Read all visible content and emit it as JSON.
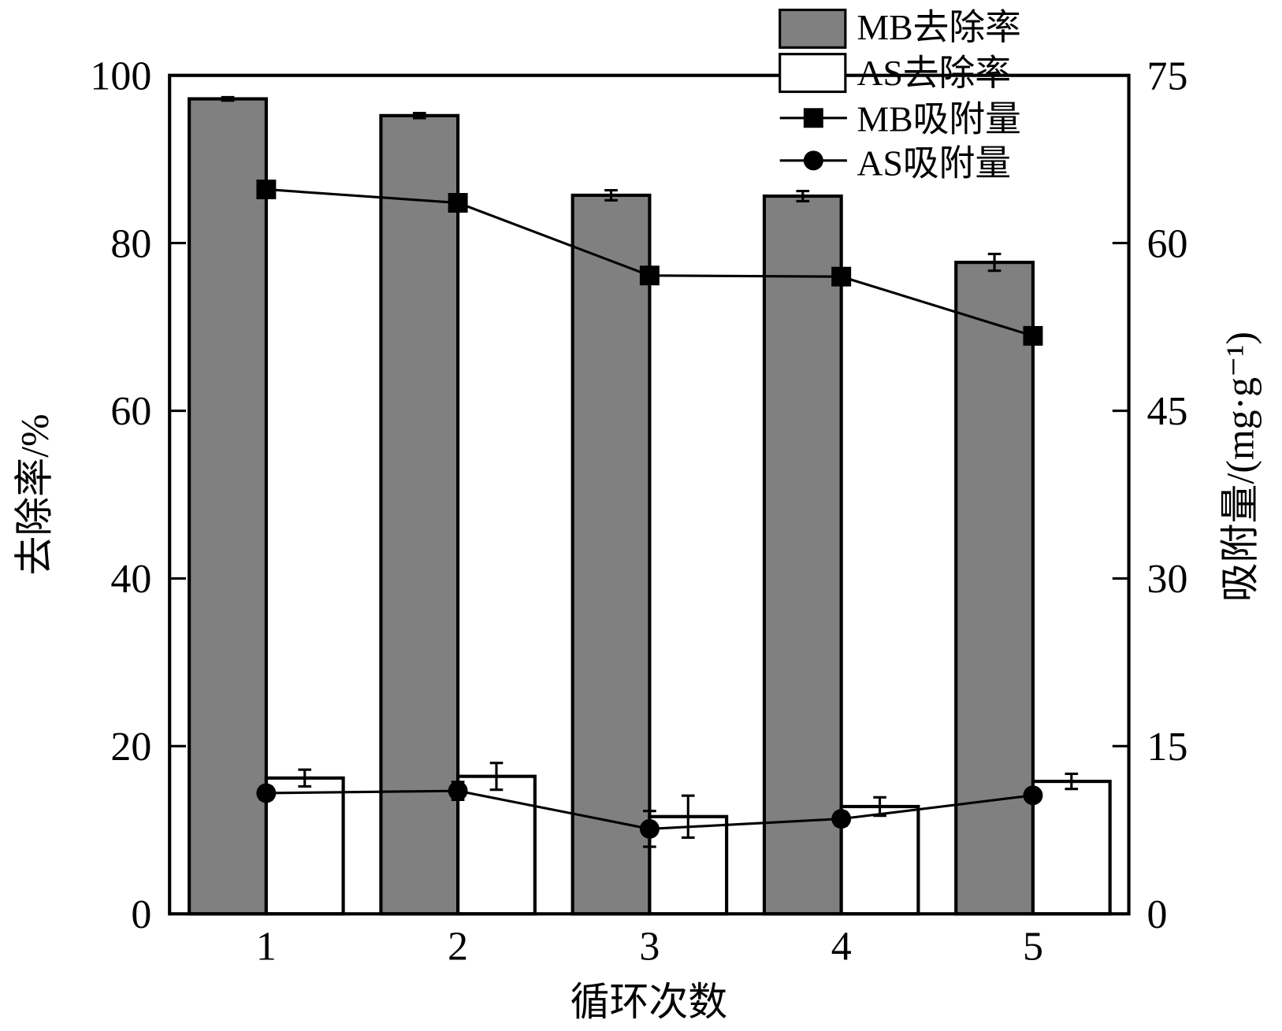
{
  "chart_data": {
    "type": "bar",
    "title": "",
    "xlabel": "循环次数",
    "ylabel": "去除率/%",
    "y2label": "吸附量/(mg·g⁻¹)",
    "categories": [
      "1",
      "2",
      "3",
      "4",
      "5"
    ],
    "ylim": [
      0,
      100
    ],
    "y2lim": [
      0,
      75
    ],
    "yticks": [
      "0",
      "20",
      "40",
      "60",
      "80",
      "100"
    ],
    "y2ticks": [
      "0",
      "15",
      "30",
      "45",
      "60",
      "75"
    ],
    "legend_position": "top-right",
    "series": [
      {
        "name": "MB去除率",
        "kind": "bar",
        "axis": "left",
        "color": "#808080",
        "values": [
          97.2,
          95.2,
          85.7,
          85.6,
          77.7
        ],
        "errors": [
          0.2,
          0.3,
          0.6,
          0.6,
          1.0
        ]
      },
      {
        "name": "AS去除率",
        "kind": "bar",
        "axis": "left",
        "color": "#ffffff",
        "values": [
          16.2,
          16.4,
          11.6,
          12.8,
          15.8
        ],
        "errors": [
          1.0,
          1.6,
          2.5,
          1.1,
          0.9
        ]
      },
      {
        "name": "MB吸附量",
        "kind": "line",
        "marker": "square",
        "axis": "right",
        "values": [
          64.8,
          63.6,
          57.1,
          57.0,
          51.7
        ],
        "errors": [
          0,
          0,
          0,
          0,
          0
        ]
      },
      {
        "name": "AS吸附量",
        "kind": "line",
        "marker": "circle",
        "axis": "right",
        "values": [
          10.8,
          11.0,
          7.6,
          8.5,
          10.6
        ],
        "errors": [
          0.6,
          0.8,
          1.6,
          0.6,
          0.5
        ]
      }
    ]
  }
}
